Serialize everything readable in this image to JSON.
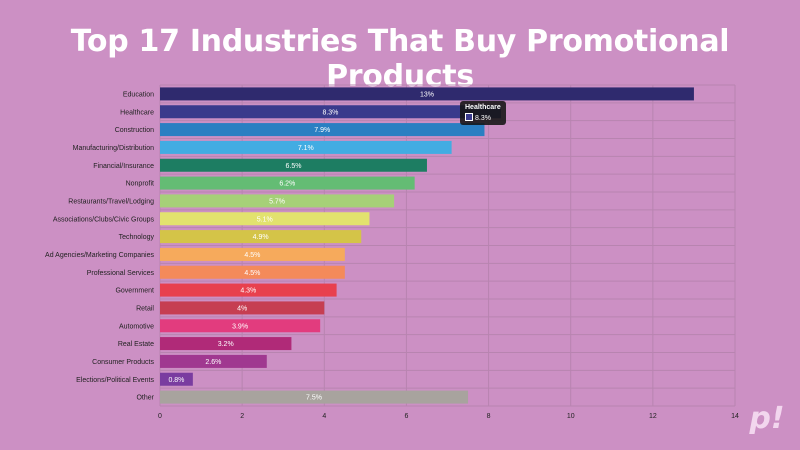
{
  "title": "Top 17 Industries That Buy Promotional Products",
  "colors": {
    "background": "#cc90c4",
    "grid": "#b884b0",
    "label_text": "#222222",
    "bar_text": "#ffffff"
  },
  "tooltip": {
    "title": "Healthcare",
    "value": "8.3%"
  },
  "logo": {
    "text": "p!"
  },
  "chart_data": {
    "type": "bar",
    "orientation": "horizontal",
    "categories": [
      "Education",
      "Healthcare",
      "Construction",
      "Manufacturing/Distribution",
      "Financial/Insurance",
      "Nonprofit",
      "Restaurants/Travel/Lodging",
      "Associations/Clubs/Civic Groups",
      "Technology",
      "Ad Agencies/Marketing Companies",
      "Professional Services",
      "Government",
      "Retail",
      "Automotive",
      "Real Estate",
      "Consumer Products",
      "Elections/Political Events",
      "Other"
    ],
    "values": [
      13,
      8.3,
      7.9,
      7.1,
      6.5,
      6.2,
      5.7,
      5.1,
      4.9,
      4.5,
      4.5,
      4.3,
      4,
      3.9,
      3.2,
      2.6,
      0.8,
      7.5
    ],
    "value_labels": [
      "13%",
      "8.3%",
      "7.9%",
      "7.1%",
      "6.5%",
      "6.2%",
      "5.7%",
      "5.1%",
      "4.9%",
      "4.5%",
      "4.5%",
      "4.3%",
      "4%",
      "3.9%",
      "3.2%",
      "2.6%",
      "0.8%",
      "7.5%"
    ],
    "bar_colors": [
      "#2f2a6e",
      "#3a3a8c",
      "#2a7fc2",
      "#42ace2",
      "#1d7d62",
      "#64bc74",
      "#a6d078",
      "#e2e26e",
      "#d4c448",
      "#f6aa5c",
      "#f48a5a",
      "#e8404e",
      "#c63e52",
      "#e23c7e",
      "#b02a78",
      "#a03890",
      "#7a3ca0",
      "#a8a39e"
    ],
    "value_label_colors": [
      "#ffffff",
      "#ffffff",
      "#ffffff",
      "#ffffff",
      "#ffffff",
      "#ffffff",
      "#ffffff",
      "#ffffff",
      "#ffffff",
      "#ffffff",
      "#ffffff",
      "#ffffff",
      "#ffffff",
      "#ffffff",
      "#ffffff",
      "#ffffff",
      "#ffffff",
      "#ffffff"
    ],
    "xlim": [
      0,
      14
    ],
    "x_ticks": [
      0,
      2,
      4,
      6,
      8,
      10,
      12,
      14
    ],
    "grid": true,
    "xlabel": "",
    "ylabel": ""
  }
}
